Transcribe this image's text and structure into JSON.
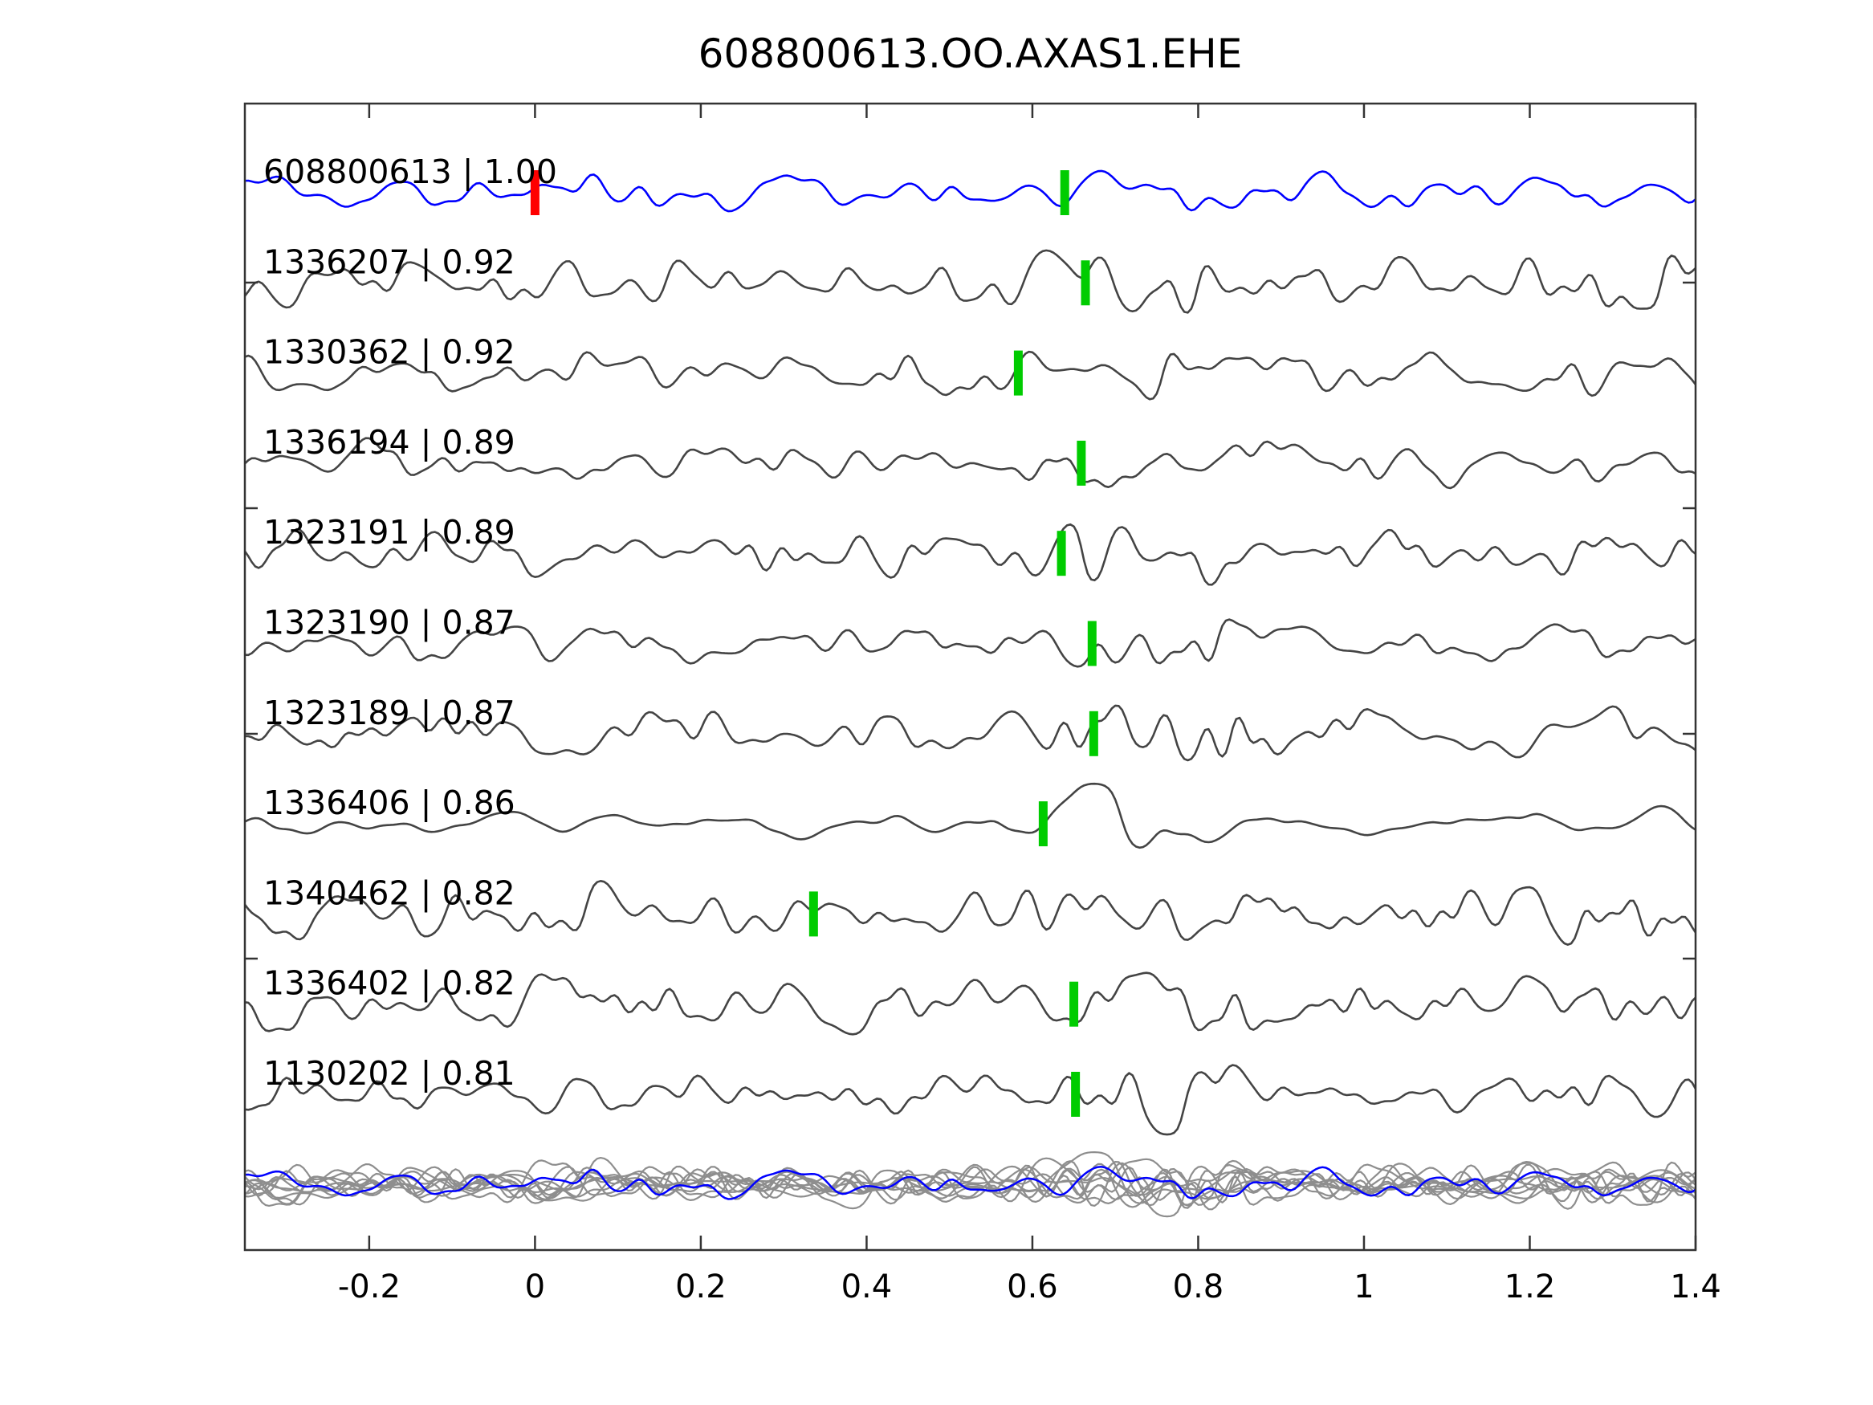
{
  "title": "608800613.OO.AXAS1.EHE",
  "chart_data": {
    "type": "line",
    "title": "608800613.OO.AXAS1.EHE",
    "subtitle": "",
    "xlabel": "",
    "ylabel": "",
    "xlim": [
      -0.35,
      1.4
    ],
    "xtick_values": [
      -0.2,
      0,
      0.2,
      0.4,
      0.6,
      0.8,
      1,
      1.2,
      1.4
    ],
    "xtick_labels": [
      "-0.2",
      "0",
      "0.2",
      "0.4",
      "0.6",
      "0.8",
      "1",
      "1.2",
      "1.4"
    ],
    "grid": false,
    "legend_position": "none",
    "colors": {
      "template_trace": "#0000ff",
      "detection_trace": "#444444",
      "overlay_trace": "#8e8e8e",
      "pick_green": "#00cc00",
      "pick_red": "#ff0000",
      "axis": "#333333",
      "text": "#000000",
      "background": "#ffffff"
    },
    "traces": [
      {
        "id": "608800613",
        "cc": "1.00",
        "label": "608800613 | 1.00",
        "picks": [
          {
            "t": 0.0,
            "color": "red"
          },
          {
            "t": 0.639,
            "color": "green"
          }
        ]
      },
      {
        "id": "1336207",
        "cc": "0.92",
        "label": "1336207 | 0.92",
        "picks": [
          {
            "t": 0.664,
            "color": "green"
          }
        ]
      },
      {
        "id": "1330362",
        "cc": "0.92",
        "label": "1330362 | 0.92",
        "picks": [
          {
            "t": 0.583,
            "color": "green"
          }
        ]
      },
      {
        "id": "1336194",
        "cc": "0.89",
        "label": "1336194 | 0.89",
        "picks": [
          {
            "t": 0.659,
            "color": "green"
          }
        ]
      },
      {
        "id": "1323191",
        "cc": "0.89",
        "label": "1323191 | 0.89",
        "picks": [
          {
            "t": 0.635,
            "color": "green"
          }
        ]
      },
      {
        "id": "1323190",
        "cc": "0.87",
        "label": "1323190 | 0.87",
        "picks": [
          {
            "t": 0.672,
            "color": "green"
          }
        ]
      },
      {
        "id": "1323189",
        "cc": "0.87",
        "label": "1323189 | 0.87",
        "picks": [
          {
            "t": 0.674,
            "color": "green"
          }
        ]
      },
      {
        "id": "1336406",
        "cc": "0.86",
        "label": "1336406 | 0.86",
        "picks": [
          {
            "t": 0.613,
            "color": "green"
          }
        ]
      },
      {
        "id": "1340462",
        "cc": "0.82",
        "label": "1340462 | 0.82",
        "picks": [
          {
            "t": 0.336,
            "color": "green"
          }
        ]
      },
      {
        "id": "1336402",
        "cc": "0.82",
        "label": "1336402 | 0.82",
        "picks": [
          {
            "t": 0.65,
            "color": "green"
          }
        ]
      },
      {
        "id": "1130202",
        "cc": "0.81",
        "label": "1130202 | 0.81",
        "picks": [
          {
            "t": 0.652,
            "color": "green"
          }
        ]
      }
    ],
    "overlay_row": {
      "description": "all detection waveforms overlaid in gray with the template waveform in blue",
      "trace_count": 12
    }
  }
}
